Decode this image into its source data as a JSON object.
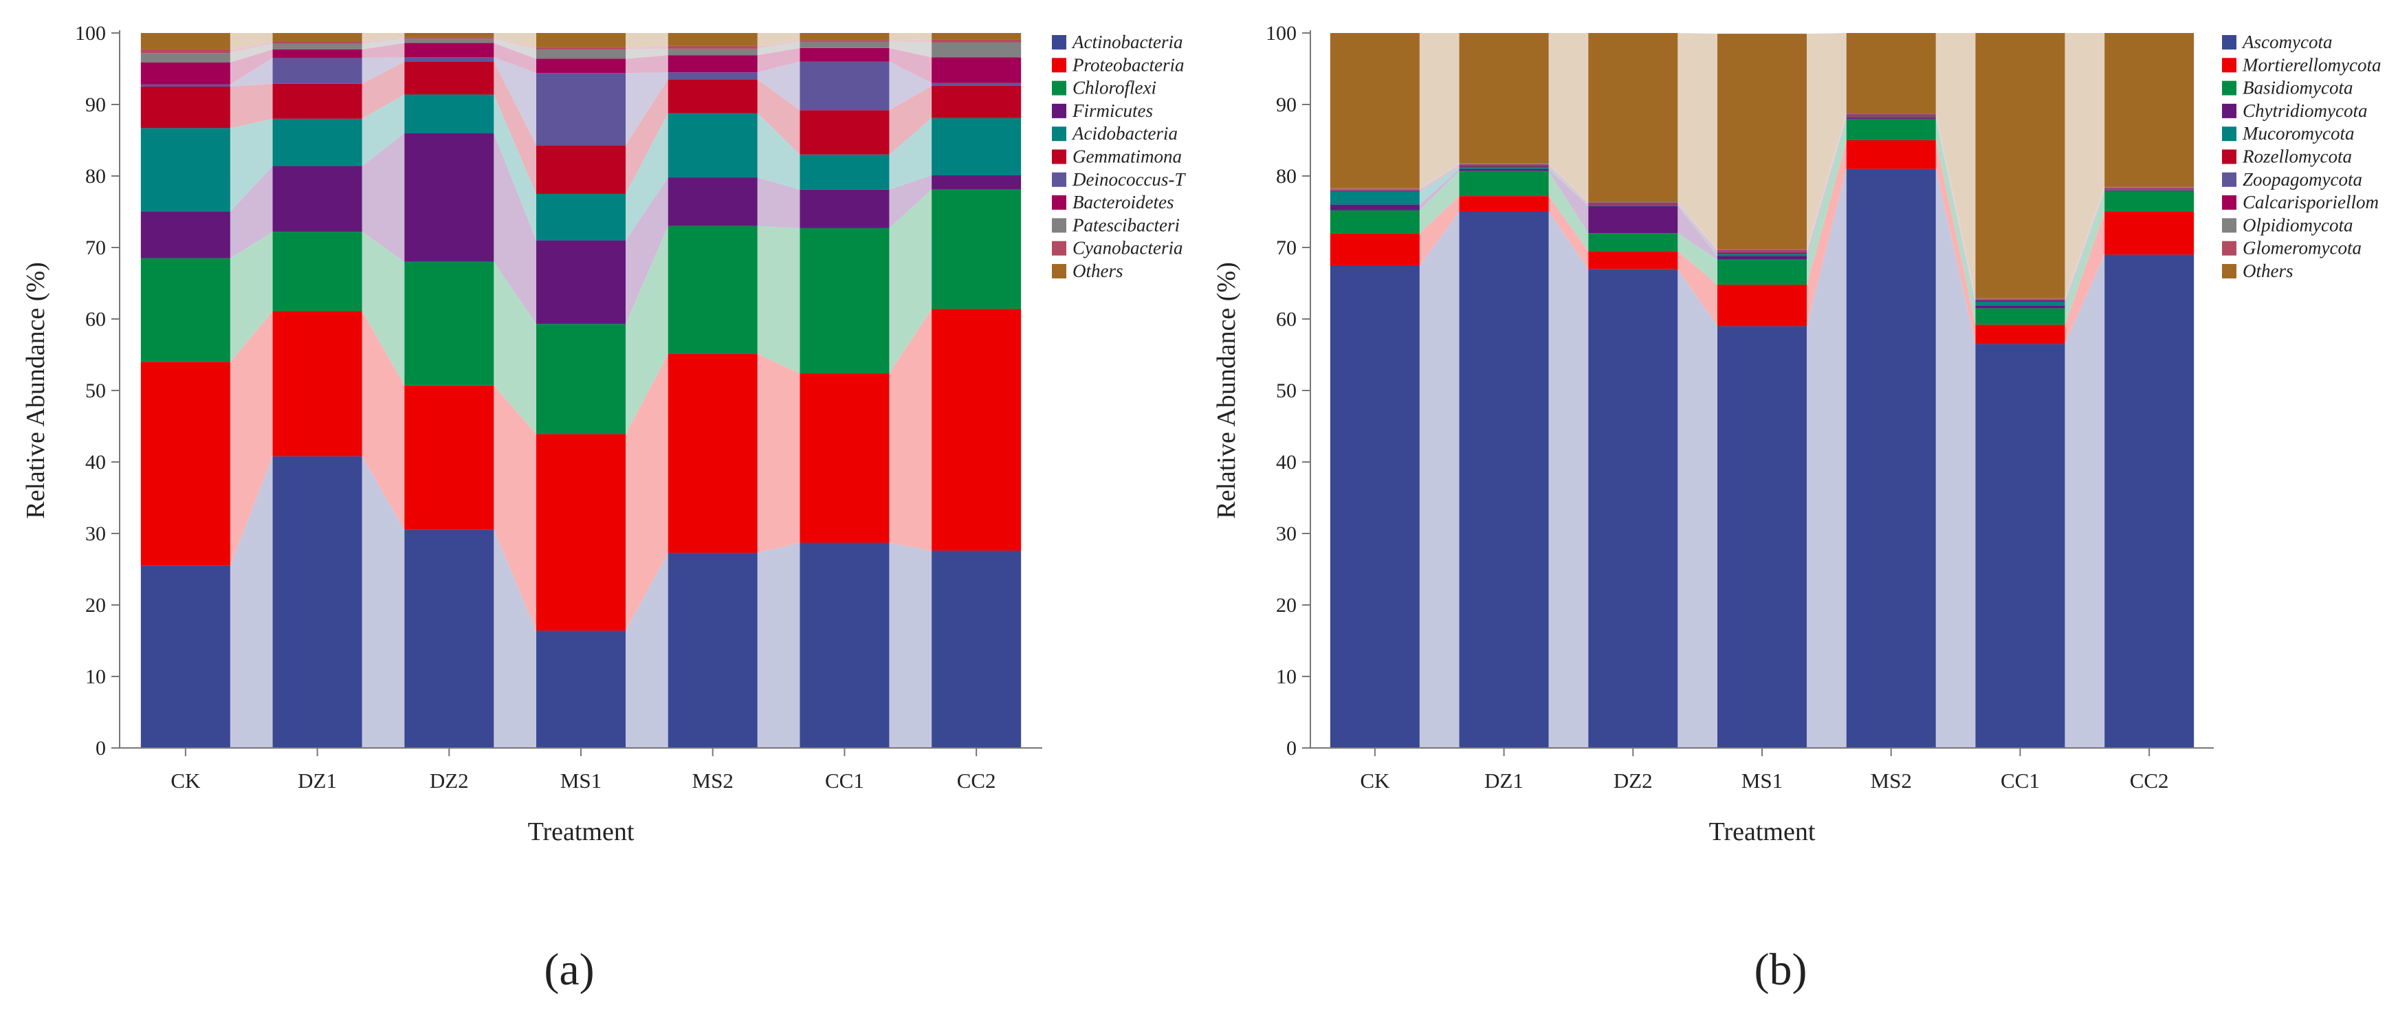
{
  "panels": [
    {
      "panel_label": "(a)",
      "chart_data": {
        "type": "bar",
        "stacked": true,
        "categories": [
          "CK",
          "DZ1",
          "DZ2",
          "MS1",
          "MS2",
          "CC1",
          "CC2"
        ],
        "xlabel": "Treatment",
        "ylabel": "Relative Abundance (%)",
        "ylim": [
          0,
          100
        ],
        "yticks": [
          "0",
          "10",
          "20",
          "30",
          "40",
          "50",
          "60",
          "70",
          "80",
          "90",
          "100"
        ],
        "grid": false,
        "legend_position": "right",
        "series": [
          {
            "name": "Actinobacteria",
            "color": "#3A4893",
            "values": [
              25.5,
              40.8,
              30.5,
              16.4,
              27.3,
              28.7,
              27.6
            ]
          },
          {
            "name": "Proteobacteria",
            "color": "#ED0000",
            "values": [
              28.5,
              20.3,
              20.2,
              27.5,
              27.8,
              23.7,
              33.8
            ]
          },
          {
            "name": "Chloroflexi",
            "color": "#008B45",
            "values": [
              14.5,
              11.1,
              17.3,
              15.4,
              17.9,
              20.3,
              16.7
            ]
          },
          {
            "name": "Firmicutes",
            "color": "#631879",
            "values": [
              6.5,
              9.2,
              18.0,
              11.7,
              6.8,
              5.4,
              2.0
            ]
          },
          {
            "name": "Acidobacteria",
            "color": "#008280",
            "values": [
              11.7,
              6.6,
              5.4,
              6.5,
              9.0,
              4.9,
              8.0
            ]
          },
          {
            "name": "Gemmatimona",
            "color": "#BB0021",
            "values": [
              5.8,
              4.9,
              4.6,
              6.8,
              4.7,
              6.2,
              4.5
            ]
          },
          {
            "name": "Deinococcus-T",
            "color": "#5F559B",
            "values": [
              0.3,
              3.6,
              0.6,
              10.1,
              1.0,
              6.8,
              0.4
            ]
          },
          {
            "name": "Bacteroidetes",
            "color": "#A20056",
            "values": [
              3.1,
              1.2,
              2.0,
              2.0,
              2.4,
              1.9,
              3.6
            ]
          },
          {
            "name": "Patescibacteri",
            "color": "#808180",
            "values": [
              1.3,
              0.8,
              0.6,
              1.3,
              0.9,
              0.9,
              2.1
            ]
          },
          {
            "name": "Cyanobacteria",
            "color": "#B24B61",
            "values": [
              0.5,
              0.3,
              0.2,
              0.3,
              0.4,
              0.2,
              0.4
            ]
          },
          {
            "name": "Others",
            "color": "#A06A25",
            "values": [
              2.3,
              1.2,
              0.6,
              2.0,
              1.8,
              1.0,
              0.9
            ]
          }
        ]
      }
    },
    {
      "panel_label": "(b)",
      "chart_data": {
        "type": "bar",
        "stacked": true,
        "categories": [
          "CK",
          "DZ1",
          "DZ2",
          "MS1",
          "MS2",
          "CC1",
          "CC2"
        ],
        "xlabel": "Treatment",
        "ylabel": "Relative Abundance (%)",
        "ylim": [
          0,
          100
        ],
        "yticks": [
          "0",
          "10",
          "20",
          "30",
          "40",
          "50",
          "60",
          "70",
          "80",
          "90",
          "100"
        ],
        "grid": false,
        "legend_position": "right",
        "series": [
          {
            "name": "Ascomycota",
            "color": "#3A4893",
            "values": [
              67.5,
              75.0,
              67.0,
              59.0,
              81.0,
              56.5,
              69.0
            ]
          },
          {
            "name": "Mortierellomycota",
            "color": "#ED0000",
            "values": [
              4.5,
              2.2,
              2.5,
              5.8,
              4.0,
              2.7,
              6.0
            ]
          },
          {
            "name": "Basidiomycota",
            "color": "#008B45",
            "values": [
              3.2,
              3.5,
              2.5,
              3.5,
              3.0,
              2.3,
              2.8
            ]
          },
          {
            "name": "Chytridiomycota",
            "color": "#631879",
            "values": [
              0.8,
              0.3,
              3.8,
              0.5,
              0.2,
              0.4,
              0.1
            ]
          },
          {
            "name": "Mucoromycota",
            "color": "#008280",
            "values": [
              1.8,
              0.3,
              0.1,
              0.3,
              0.1,
              0.5,
              0.1
            ]
          },
          {
            "name": "Rozellomycota",
            "color": "#BB0021",
            "values": [
              0.1,
              0.1,
              0.1,
              0.2,
              0.1,
              0.1,
              0.1
            ]
          },
          {
            "name": "Zoopagomycota",
            "color": "#5F559B",
            "values": [
              0.1,
              0.1,
              0.1,
              0.2,
              0.1,
              0.1,
              0.1
            ]
          },
          {
            "name": "Calcarisporiellom",
            "color": "#A20056",
            "values": [
              0.1,
              0.1,
              0.1,
              0.1,
              0.1,
              0.1,
              0.1
            ]
          },
          {
            "name": "Olpidiomycota",
            "color": "#808180",
            "values": [
              0.1,
              0.1,
              0.1,
              0.1,
              0.1,
              0.1,
              0.1
            ]
          },
          {
            "name": "Glomeromycota",
            "color": "#B24B61",
            "values": [
              0.1,
              0.1,
              0.1,
              0.1,
              0.1,
              0.1,
              0.1
            ]
          },
          {
            "name": "Others",
            "color": "#A06A25",
            "values": [
              21.7,
              18.2,
              23.6,
              30.1,
              11.2,
              37.1,
              21.5
            ]
          }
        ]
      }
    }
  ]
}
